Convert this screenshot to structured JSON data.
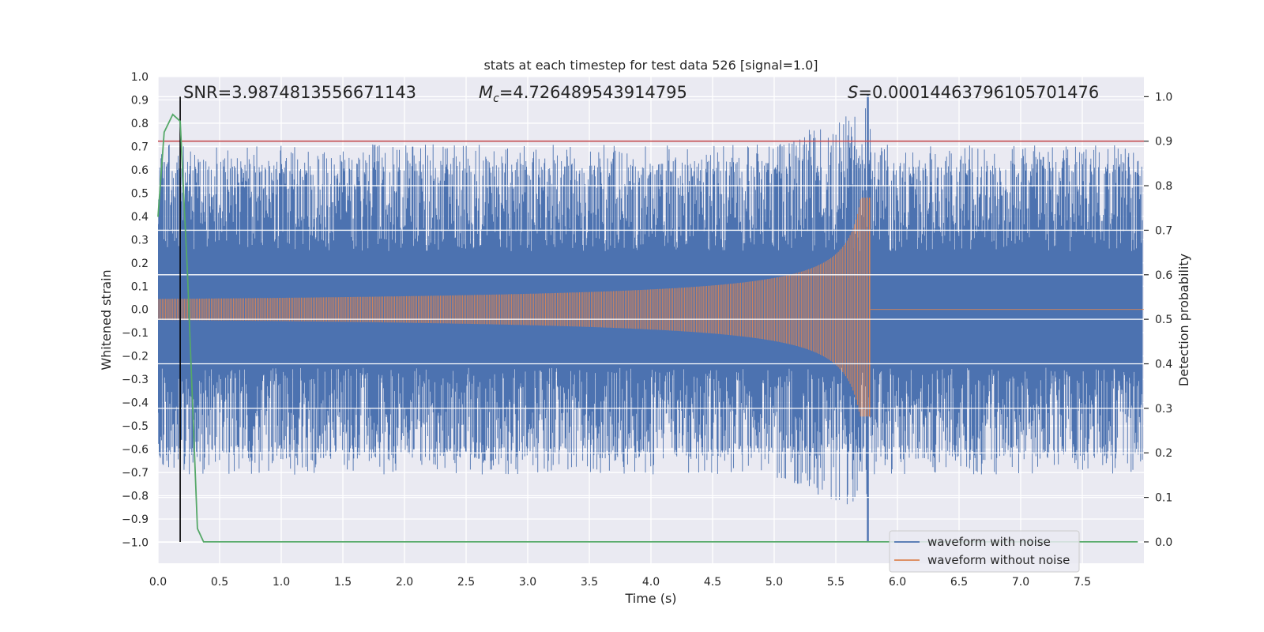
{
  "chart_data": {
    "type": "line",
    "title": "stats at each timestep for test data 526 [signal=1.0]",
    "xlabel": "Time (s)",
    "ylabel": "Whitened strain",
    "y2label": "Detection probability",
    "xlim": [
      0.0,
      8.0
    ],
    "ylim": [
      -1.09,
      1.0
    ],
    "y2lim": [
      -0.048,
      1.045
    ],
    "x_ticks": [
      "0.0",
      "0.5",
      "1.0",
      "1.5",
      "2.0",
      "2.5",
      "3.0",
      "3.5",
      "4.0",
      "4.5",
      "5.0",
      "5.5",
      "6.0",
      "6.5",
      "7.0",
      "7.5"
    ],
    "y_ticks": [
      "1.0",
      "0.9",
      "0.8",
      "0.7",
      "0.6",
      "0.5",
      "0.4",
      "0.3",
      "0.2",
      "0.1",
      "0.0",
      "−0.1",
      "−0.2",
      "−0.3",
      "−0.4",
      "−0.5",
      "−0.6",
      "−0.7",
      "−0.8",
      "−0.9",
      "−1.0"
    ],
    "y2_ticks": [
      "1.0",
      "0.9",
      "0.8",
      "0.7",
      "0.6",
      "0.5",
      "0.4",
      "0.3",
      "0.2",
      "0.1",
      "0.0"
    ],
    "annotations": {
      "snr_text": "SNR=3.9874813556671143",
      "mc_symbol": "M",
      "mc_sub": "c",
      "mc_value": "=4.726489543914795",
      "s_symbol": "S",
      "s_value": "=0.00014463796105701476"
    },
    "threshold": 0.9,
    "marker_time": 0.18,
    "merger_time": 5.78,
    "series": [
      {
        "name": "waveform with noise",
        "color": "#4c72b0",
        "kind": "noisy-strain",
        "typical_amplitude": 0.6,
        "peak_max": 0.92,
        "peak_min": -1.0
      },
      {
        "name": "waveform without noise",
        "color": "#dd8452",
        "kind": "chirp",
        "start_amplitude": 0.045,
        "peak_max": 0.48,
        "peak_min": -0.46,
        "merger_time": 5.78
      },
      {
        "name": "detection probability",
        "color": "#55a868",
        "axis": "right",
        "x": [
          0.0,
          0.05,
          0.12,
          0.18,
          0.24,
          0.32,
          0.37,
          0.45,
          1.0,
          2.0,
          3.0,
          4.0,
          5.0,
          6.0,
          7.0,
          7.95
        ],
        "values": [
          0.73,
          0.92,
          0.96,
          0.945,
          0.6,
          0.03,
          0.0,
          0.0,
          0.0,
          0.0,
          0.0,
          0.0,
          0.0,
          0.0,
          0.0,
          0.0
        ]
      }
    ],
    "colors": {
      "plot_bg": "#eaeaf2",
      "grid": "#ffffff",
      "threshold": "#c44e52",
      "marker": "#000000"
    },
    "legend": {
      "position": "lower-right",
      "entries": [
        "waveform with noise",
        "waveform without noise"
      ]
    }
  }
}
